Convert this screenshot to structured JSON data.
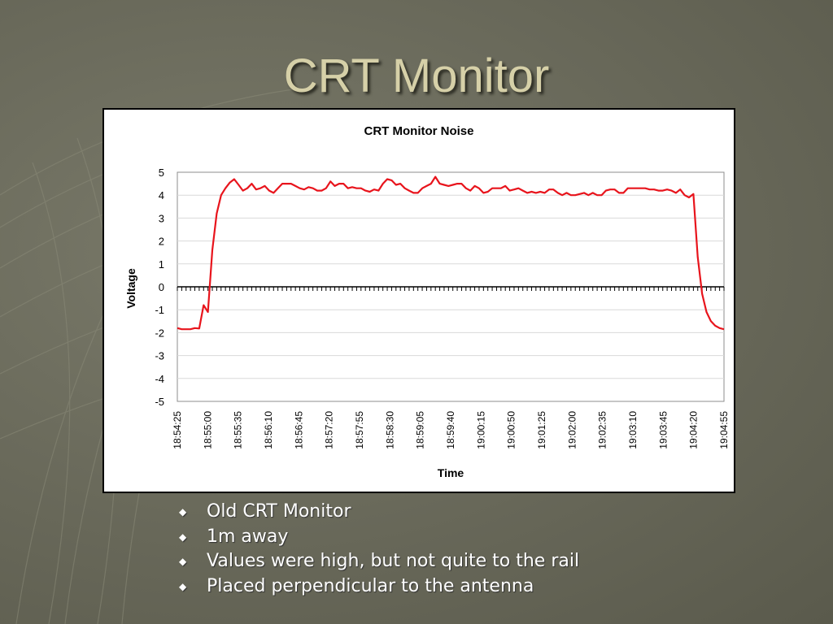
{
  "slide": {
    "title": "CRT Monitor",
    "bullets": [
      "Old CRT Monitor",
      "1m away",
      "Values were high, but not quite to the rail",
      "Placed perpendicular to the antenna"
    ],
    "bullet_icon": "diamond-bullet-icon"
  },
  "colors": {
    "background": "#6b6b5c",
    "title": "#d6d0a8",
    "series_line": "#e8141c",
    "bullet_text": "#ffffff"
  },
  "chart_data": {
    "type": "line",
    "title": "CRT Monitor Noise",
    "xlabel": "Time",
    "ylabel": "Voltage",
    "ylim": [
      -5,
      5
    ],
    "yticks": [
      5,
      4,
      3,
      2,
      1,
      0,
      -1,
      -2,
      -3,
      -4,
      -5
    ],
    "grid": true,
    "legend": "none",
    "x_tick_labels": [
      "18:54:25",
      "18:55:00",
      "18:55:35",
      "18:56:10",
      "18:56:45",
      "18:57:20",
      "18:57:55",
      "18:58:30",
      "18:59:05",
      "18:59:40",
      "19:00:15",
      "19:00:50",
      "19:01:25",
      "19:02:00",
      "19:02:35",
      "19:03:10",
      "19:03:45",
      "19:04:20",
      "19:04:55"
    ],
    "sample_interval_seconds": 5,
    "series": [
      {
        "values": [
          -1.8,
          -1.85,
          -1.85,
          -1.85,
          -1.8,
          -1.82,
          -0.8,
          -1.1,
          1.6,
          3.2,
          4.0,
          4.3,
          4.55,
          4.7,
          4.45,
          4.2,
          4.3,
          4.5,
          4.25,
          4.3,
          4.4,
          4.2,
          4.1,
          4.3,
          4.5,
          4.5,
          4.5,
          4.4,
          4.3,
          4.25,
          4.35,
          4.3,
          4.2,
          4.2,
          4.3,
          4.6,
          4.4,
          4.5,
          4.5,
          4.3,
          4.35,
          4.3,
          4.3,
          4.2,
          4.15,
          4.25,
          4.2,
          4.5,
          4.7,
          4.65,
          4.45,
          4.5,
          4.3,
          4.2,
          4.1,
          4.1,
          4.3,
          4.4,
          4.5,
          4.8,
          4.5,
          4.45,
          4.4,
          4.45,
          4.5,
          4.5,
          4.3,
          4.2,
          4.4,
          4.3,
          4.1,
          4.15,
          4.3,
          4.3,
          4.3,
          4.4,
          4.2,
          4.25,
          4.3,
          4.2,
          4.1,
          4.15,
          4.1,
          4.15,
          4.1,
          4.25,
          4.25,
          4.1,
          4.0,
          4.1,
          4.0,
          4.0,
          4.05,
          4.1,
          4.0,
          4.1,
          4.0,
          4.0,
          4.2,
          4.25,
          4.25,
          4.1,
          4.1,
          4.3,
          4.3,
          4.3,
          4.3,
          4.3,
          4.25,
          4.25,
          4.2,
          4.2,
          4.25,
          4.2,
          4.1,
          4.25,
          4.0,
          3.9,
          4.05,
          1.3,
          -0.3,
          -1.1,
          -1.5,
          -1.7,
          -1.8,
          -1.85
        ]
      }
    ]
  }
}
